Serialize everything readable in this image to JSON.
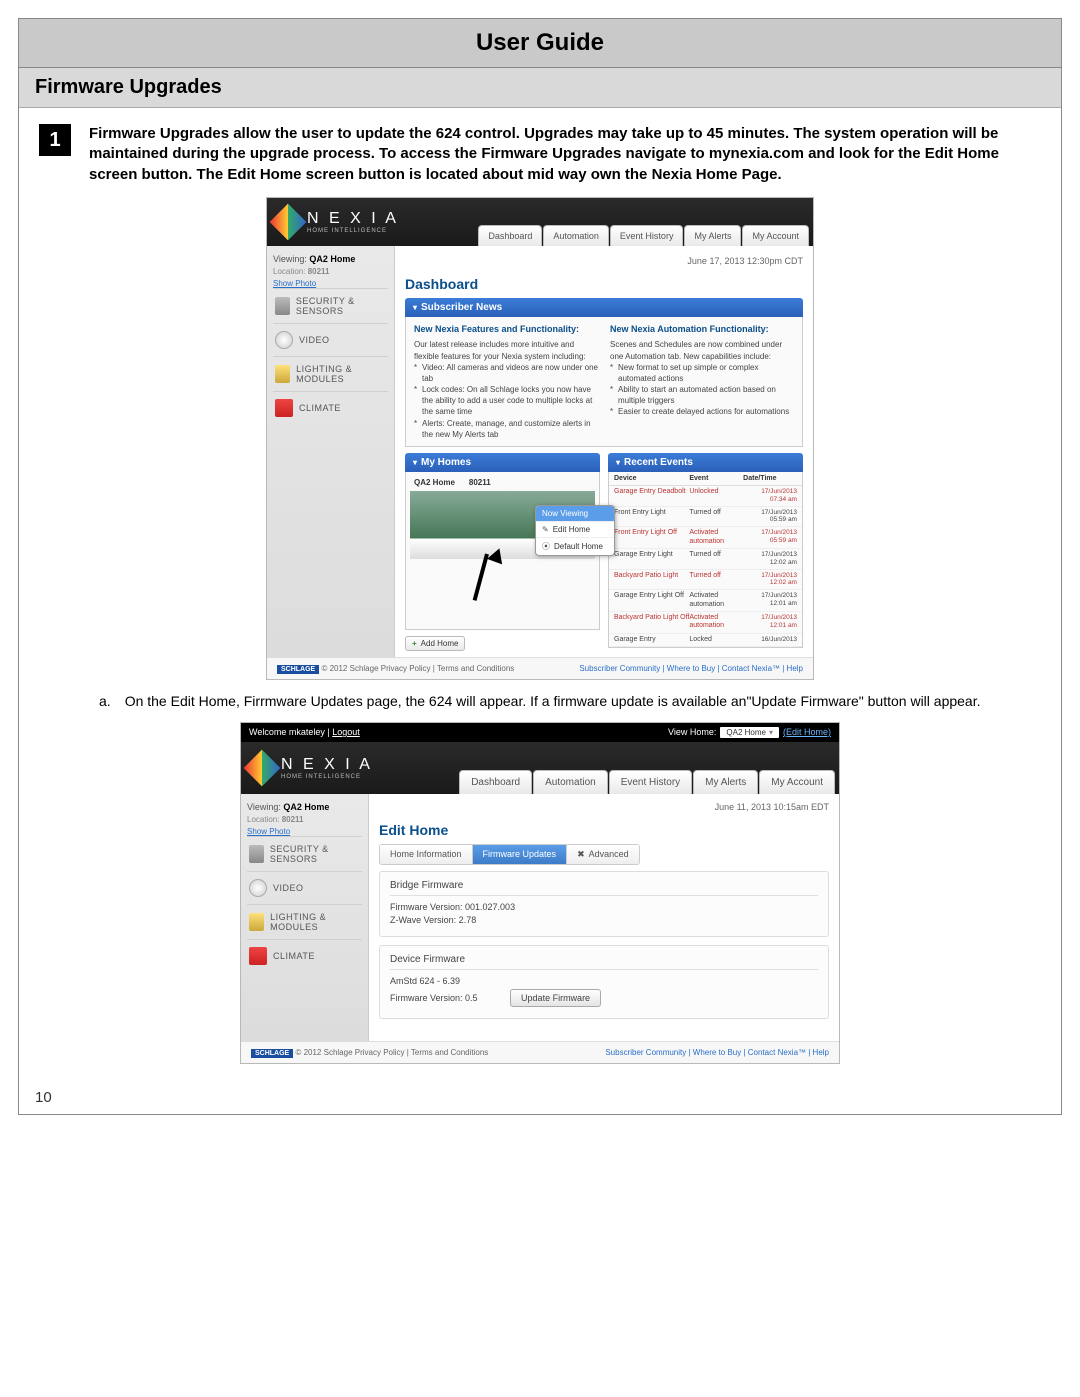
{
  "doc": {
    "title": "User Guide",
    "section": "Firmware Upgrades",
    "page_num": "10",
    "step_num": "1",
    "step_text": "Firmware Upgrades allow the user to update the 624 control.  Upgrades may take up to 45 minutes.  The system operation will be maintained during the upgrade process.  To access the Firmware Upgrades navigate to mynexia.com and look for the Edit Home screen button.  The Edit Home screen button is located about mid way own the Nexia Home Page.",
    "substep_a_letter": "a.",
    "substep_a": "On the Edit Home, Firrmware Updates page, the 624 will appear.  If a firmware update is available an\"Update Firmware\" button will appear."
  },
  "brand": {
    "name": "N E X I A",
    "tag": "HOME INTELLIGENCE"
  },
  "ss1": {
    "tabs": [
      "Dashboard",
      "Automation",
      "Event History",
      "My Alerts",
      "My Account"
    ],
    "date": "June 17, 2013  12:30pm CDT",
    "viewing_label": "Viewing:",
    "viewing_home": "QA2 Home",
    "loc_label": "Location:",
    "loc": "80211",
    "show_photo": "Show Photo",
    "cats": [
      "SECURITY & SENSORS",
      "VIDEO",
      "LIGHTING & MODULES",
      "CLIMATE"
    ],
    "page_title": "Dashboard",
    "panel_news": "Subscriber News",
    "news_l_head": "New Nexia Features and Functionality:",
    "news_l_intro": "Our latest release includes more intuitive and flexible features for your Nexia system including:",
    "news_l_items": [
      "Video: All cameras and videos are now under one tab",
      "Lock codes: On all Schlage locks you now have the ability to add a user code to multiple locks at the same time",
      "Alerts: Create, manage, and customize alerts in the new My Alerts tab"
    ],
    "news_r_head": "New Nexia Automation Functionality:",
    "news_r_intro": "Scenes and Schedules are now combined under one Automation tab. New capabilities include:",
    "news_r_items": [
      "New format to set up simple or complex automated actions",
      "Ability to start an automated action based on multiple triggers",
      "Easier to create delayed actions for automations"
    ],
    "panel_homes": "My Homes",
    "home_name": "QA2 Home",
    "home_zip": "80211",
    "ctx": [
      "Now Viewing",
      "Edit Home",
      "Default Home"
    ],
    "add_home": "Add Home",
    "panel_events": "Recent Events",
    "ev_cols": [
      "Device",
      "Event",
      "Date/Time"
    ],
    "events": [
      {
        "d": "Garage Entry Deadbolt",
        "e": "Unlocked",
        "t": "17/Jun/2013 07:34 am",
        "r": true
      },
      {
        "d": "Front Entry Light",
        "e": "Turned off",
        "t": "17/Jun/2013 05:59 am",
        "r": false
      },
      {
        "d": "Front Entry Light Off",
        "e": "Activated automation",
        "t": "17/Jun/2013 05:59 am",
        "r": true
      },
      {
        "d": "Garage Entry Light",
        "e": "Turned off",
        "t": "17/Jun/2013 12:02 am",
        "r": false
      },
      {
        "d": "Backyard Patio Light",
        "e": "Turned off",
        "t": "17/Jun/2013 12:02 am",
        "r": true
      },
      {
        "d": "Garage Entry Light Off",
        "e": "Activated automation",
        "t": "17/Jun/2013 12:01 am",
        "r": false
      },
      {
        "d": "Backyard Patio Light Off",
        "e": "Activated automation",
        "t": "17/Jun/2013 12:01 am",
        "r": true
      },
      {
        "d": "Garage Entry",
        "e": "Locked",
        "t": "16/Jun/2013",
        "r": false
      }
    ],
    "footer_l": "© 2012 Schlage Privacy Policy | Terms and Conditions",
    "footer_r": "Subscriber Community | Where to Buy | Contact Nexia™ | Help"
  },
  "ss2": {
    "welcome": "Welcome mkateley | ",
    "logout": "Logout",
    "vh_label": "View Home:",
    "vh_sel": "QA2 Home",
    "edit_home": "(Edit Home)",
    "tabs": [
      "Dashboard",
      "Automation",
      "Event History",
      "My Alerts",
      "My Account"
    ],
    "date": "June 11, 2013  10:15am EDT",
    "page_title": "Edit Home",
    "subtabs": [
      "Home Information",
      "Firmware Updates",
      "Advanced"
    ],
    "bridge_head": "Bridge Firmware",
    "fw_ver_label": "Firmware Version: 001.027.003",
    "zw_ver_label": "Z-Wave Version: 2.78",
    "dev_head": "Device Firmware",
    "dev_name": "AmStd 624 - 6.39",
    "dev_fw": "Firmware Version: 0.5",
    "update_btn": "Update Firmware",
    "footer_l": "© 2012 Schlage Privacy Policy | Terms and Conditions",
    "footer_r": "Subscriber Community | Where to Buy | Contact Nexia™ | Help"
  }
}
